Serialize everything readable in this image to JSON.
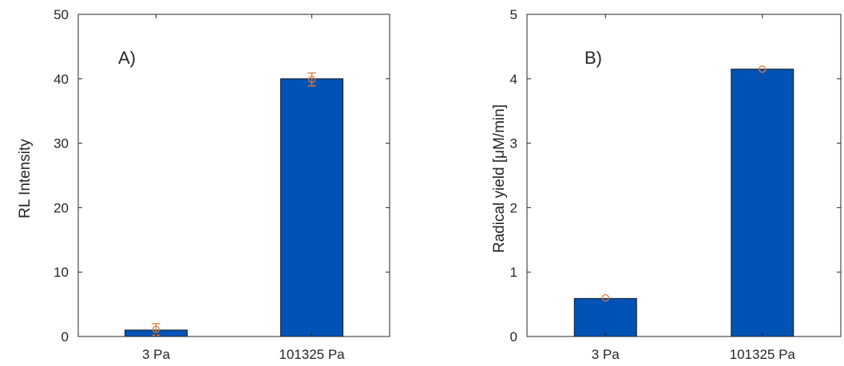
{
  "chart_data": [
    {
      "type": "bar",
      "panel_label": "A)",
      "title": "",
      "xlabel": "",
      "ylabel": "RL Intensity",
      "categories": [
        "3 Pa",
        "101325 Pa"
      ],
      "values": [
        1.0,
        40.0
      ],
      "markers": [
        1.1,
        39.9
      ],
      "error_low": [
        0.9,
        1.0
      ],
      "error_high": [
        0.9,
        1.0
      ],
      "ylim": [
        0,
        50
      ],
      "yticks": [
        0,
        10,
        20,
        30,
        40,
        50
      ],
      "grid": false,
      "legend": "none"
    },
    {
      "type": "bar",
      "panel_label": "B)",
      "title": "",
      "xlabel": "",
      "ylabel": "Radical yield [μM/min]",
      "categories": [
        "3 Pa",
        "101325 Pa"
      ],
      "values": [
        0.59,
        4.15
      ],
      "markers": [
        0.6,
        4.15
      ],
      "error_low": [
        0.0,
        0.0
      ],
      "error_high": [
        0.0,
        0.0
      ],
      "ylim": [
        0,
        5
      ],
      "yticks": [
        0,
        1,
        2,
        3,
        4,
        5
      ],
      "grid": false,
      "legend": "none"
    }
  ],
  "colors": {
    "bar_fill": "#0052b4",
    "bar_stroke": "#1a1a1a",
    "marker": "#e07b39",
    "axis": "#262626"
  }
}
